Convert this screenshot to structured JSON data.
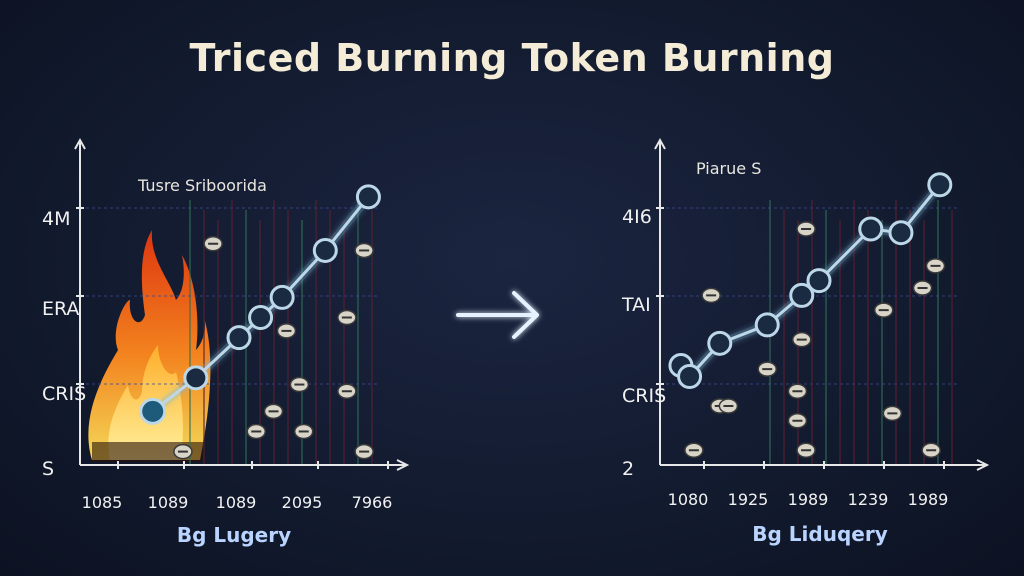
{
  "title": "Triced Burning Token Burning",
  "colors": {
    "background": "#121a2e",
    "line": "#bcd8e8",
    "glow": "#7fb8d8",
    "grid": "#3a4a8a",
    "fire_outer": "#ff5a1a",
    "fire_inner": "#ffd23a"
  },
  "arrow_icon": "right-arrow-icon",
  "chart_data": [
    {
      "type": "line",
      "title": "Tusre Sriboorida",
      "xlabel": "Bg Lugery",
      "x_ticks": [
        "1085",
        "1089",
        "1089",
        "2095",
        "7966"
      ],
      "y_ticks": [
        "S",
        "CRIS",
        "ERA",
        "4M"
      ],
      "grid": true,
      "annotation_icon": "fire-icon",
      "series": [
        {
          "x": [
            1.5,
            2.5,
            3.5,
            4.0,
            4.5,
            5.5,
            6.5
          ],
          "y": [
            0.8,
            1.3,
            1.9,
            2.2,
            2.5,
            3.2,
            4.0
          ]
        }
      ],
      "xlim": [
        0,
        7
      ],
      "ylim": [
        0,
        4.4
      ],
      "scatter_tokens": {
        "x": [
          2.9,
          4.6,
          4.9,
          6.0,
          6.4,
          6.0,
          5.0,
          3.9,
          4.3,
          6.4,
          2.2
        ],
        "y": [
          3.3,
          2.0,
          1.2,
          2.2,
          3.2,
          1.1,
          0.5,
          0.5,
          0.8,
          0.2,
          0.2
        ]
      }
    },
    {
      "type": "line",
      "title": "Piarue S",
      "xlabel": "Bg Liduqery",
      "x_ticks": [
        "1080",
        "1925",
        "1989",
        "1239",
        "1989"
      ],
      "y_ticks": [
        "2",
        "CRIS",
        "TAI",
        "4I6"
      ],
      "grid": true,
      "series": [
        {
          "x": [
            0.3,
            0.5,
            1.2,
            2.3,
            3.1,
            3.5,
            4.7,
            5.4,
            6.3
          ],
          "y": [
            1.35,
            1.2,
            1.65,
            1.9,
            2.3,
            2.5,
            3.2,
            3.15,
            3.8
          ]
        }
      ],
      "xlim": [
        0,
        7
      ],
      "ylim": [
        0,
        4.0
      ],
      "scatter_tokens": {
        "x": [
          3.2,
          1.0,
          3.1,
          2.3,
          1.2,
          3.0,
          5.0,
          5.9,
          6.2,
          1.4,
          3.0,
          5.2,
          6.1,
          0.6,
          3.2
        ],
        "y": [
          3.2,
          2.3,
          1.7,
          1.3,
          0.8,
          1.0,
          2.1,
          2.4,
          2.7,
          0.8,
          0.6,
          0.7,
          0.2,
          0.2,
          0.2
        ]
      }
    }
  ]
}
